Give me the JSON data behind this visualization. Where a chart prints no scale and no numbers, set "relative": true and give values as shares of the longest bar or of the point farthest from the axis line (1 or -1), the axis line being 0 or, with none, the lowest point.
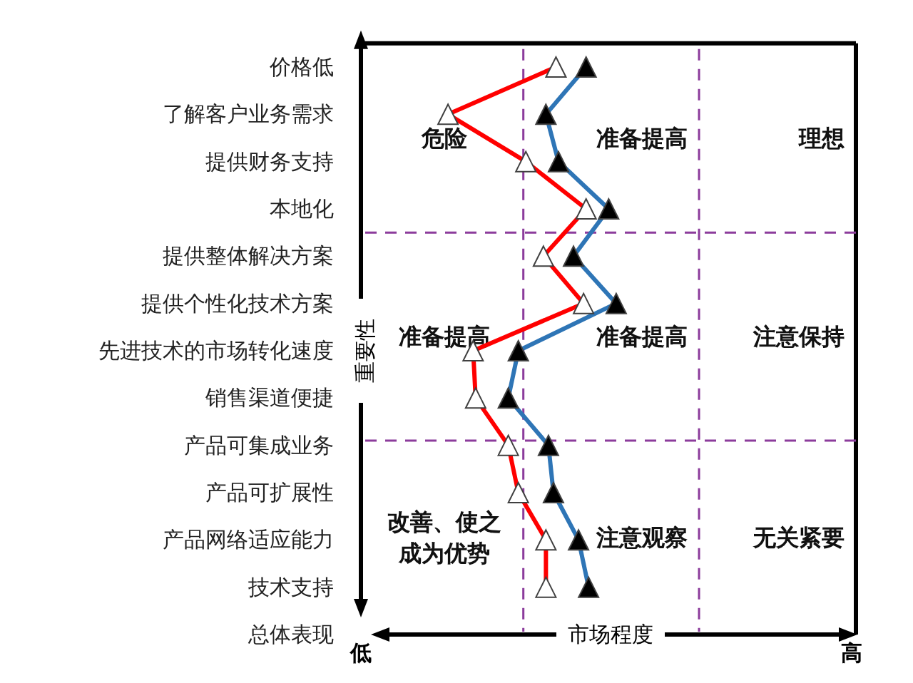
{
  "chart_data": {
    "type": "line",
    "orientation": "horizontal",
    "relative": true,
    "xlabel": "市场程度",
    "ylabel": "重要性",
    "categories": [
      "价格低",
      "了解客户业务需求",
      "提供财务支持",
      "本地化",
      "提供整体解决方案",
      "提供个性化技术方案",
      "先进技术的市场转化速度",
      "销售渠道便捷",
      "产品可集成业务",
      "产品可扩展性",
      "产品网络适应能力",
      "技术支持",
      "总体表现"
    ],
    "marker": "triangle",
    "line_style": "solid",
    "series": [
      {
        "color": "#ff0000",
        "colors": [
          "#ffffff",
          "#ffffff",
          "#ffffff",
          "#ffffff",
          "#ffffff",
          "#ffffff",
          "#ffffff",
          "#ffffff",
          "#ffffff",
          "#ffffff",
          "#ffffff",
          "#ffffff",
          null
        ],
        "values": [
          0.76,
          0.33,
          0.64,
          0.88,
          0.71,
          0.87,
          0.43,
          0.44,
          0.57,
          0.61,
          0.72,
          0.72,
          null
        ]
      },
      {
        "color": "#2e75b6",
        "colors": [
          "#000000",
          "#000000",
          "#000000",
          "#000000",
          "#000000",
          "#000000",
          "#000000",
          "#000000",
          "#000000",
          "#000000",
          "#000000",
          "#000000",
          null
        ],
        "values": [
          0.88,
          0.72,
          0.77,
          0.97,
          0.83,
          1,
          0.61,
          0.57,
          0.73,
          0.75,
          0.85,
          0.89,
          null
        ]
      }
    ],
    "ref_lines": [
      {
        "axis": "x",
        "value": 0.63,
        "color": "#8c3c9c",
        "line_style": "dashed"
      },
      {
        "axis": "x",
        "value": 1.33,
        "color": "#8c3c9c",
        "line_style": "dashed"
      }
    ],
    "annotations": [
      "危险",
      "准备提高",
      "理想",
      "准备提高",
      "准备提高",
      "注意保持",
      "改善、使之成为优势",
      "注意观察",
      "无关紧要",
      "低",
      "高"
    ]
  }
}
